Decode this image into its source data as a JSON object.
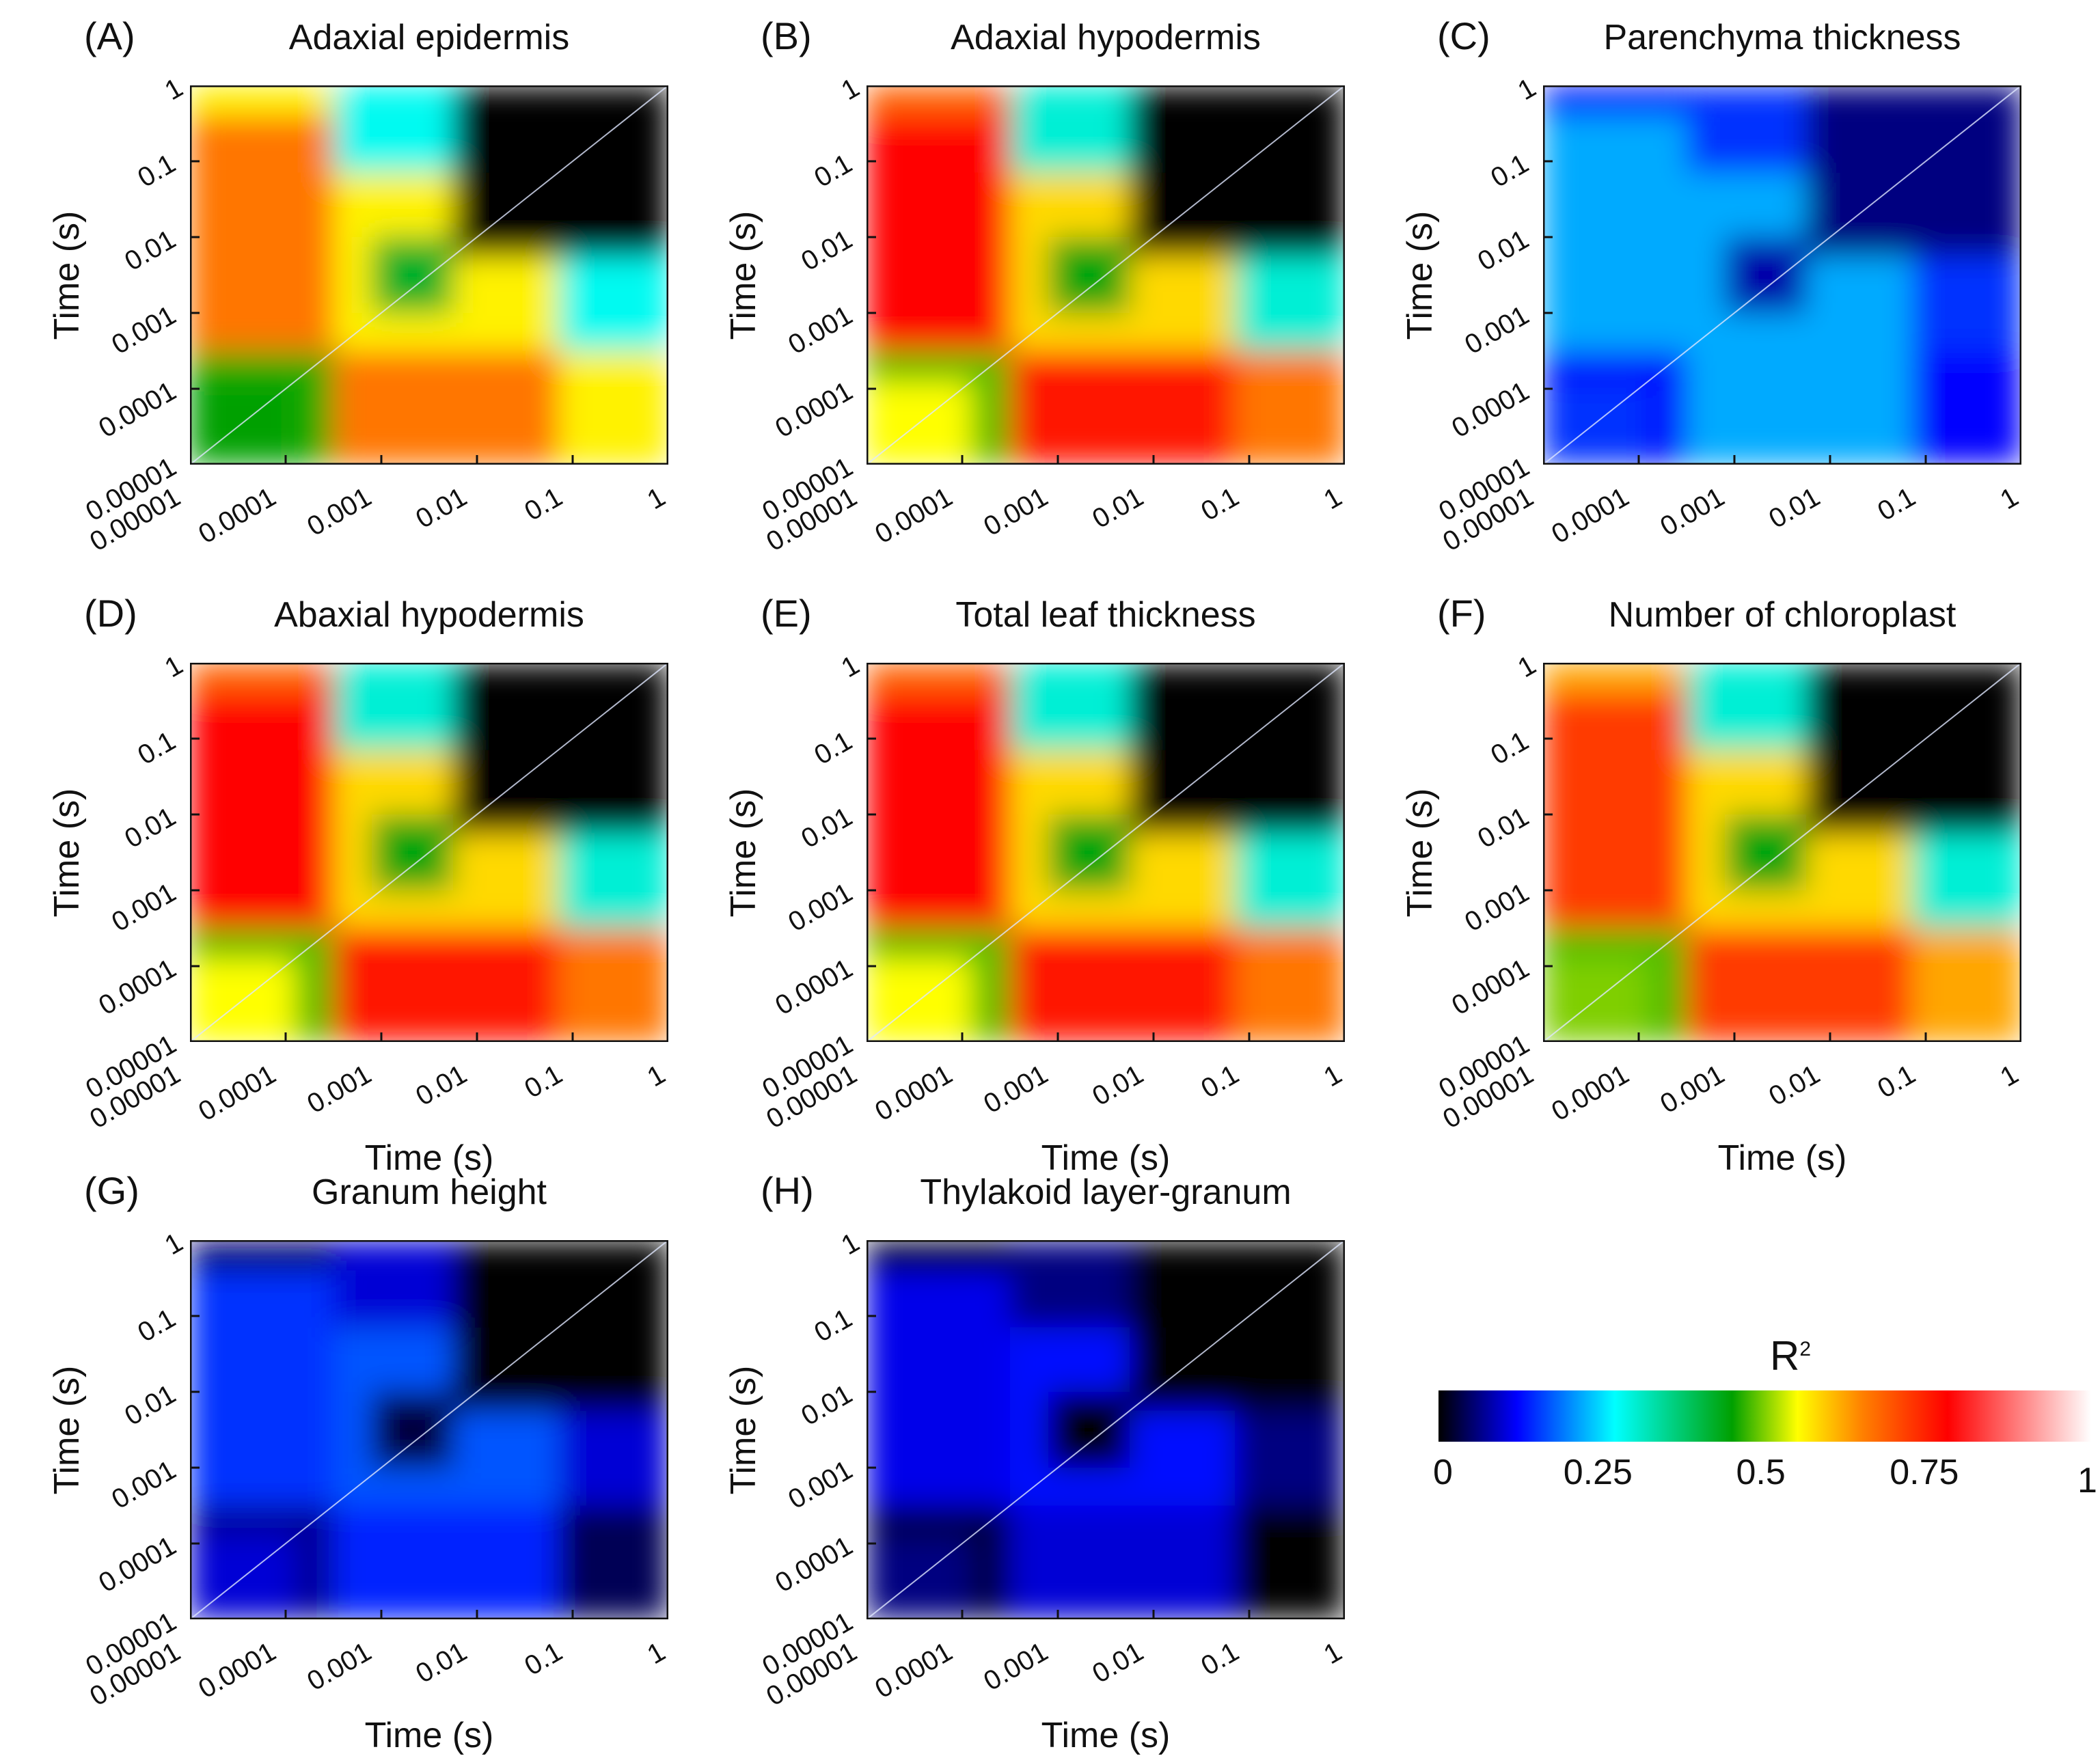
{
  "chart_data": {
    "type": "heatmap",
    "description_axes": "time-time correlation maps, log-scaled axes",
    "panels": [
      {
        "label": "(A)",
        "title": "Adaxial epidermis",
        "show_xlabel": false,
        "show_ylabel": true,
        "level": "medium"
      },
      {
        "label": "(B)",
        "title": "Adaxial hypodermis",
        "show_xlabel": false,
        "show_ylabel": true,
        "level": "high"
      },
      {
        "label": "(C)",
        "title": "Parenchyma thickness",
        "show_xlabel": false,
        "show_ylabel": true,
        "level": "low"
      },
      {
        "label": "(D)",
        "title": "Abaxial hypodermis",
        "show_xlabel": true,
        "show_ylabel": true,
        "level": "high"
      },
      {
        "label": "(E)",
        "title": "Total leaf thickness",
        "show_xlabel": true,
        "show_ylabel": true,
        "level": "high"
      },
      {
        "label": "(F)",
        "title": "Number of chloroplast",
        "show_xlabel": true,
        "show_ylabel": true,
        "level": "medium-high"
      },
      {
        "label": "(G)",
        "title": "Granum height",
        "show_xlabel": true,
        "show_ylabel": true,
        "level": "very-low"
      },
      {
        "label": "(H)",
        "title": "Thylakoid layer-granum",
        "show_xlabel": true,
        "show_ylabel": true,
        "level": "lowest"
      }
    ],
    "xlabel": "Time (s)",
    "ylabel": "Time (s)",
    "x_ticks": [
      "0.00001",
      "0.0001",
      "0.001",
      "0.01",
      "0.1",
      "1"
    ],
    "y_ticks": [
      "1",
      "0.1",
      "0.01",
      "0.001",
      "0.0001",
      "0.00001"
    ],
    "xlim": [
      1e-05,
      1
    ],
    "ylim": [
      1e-05,
      1
    ],
    "colorbar": {
      "title": "R",
      "title_sup": "2",
      "range": [
        0,
        1
      ],
      "ticks": [
        "0",
        "0.25",
        "0.5",
        "0.75",
        "1"
      ],
      "tick_values": [
        0,
        0.25,
        0.5,
        0.75,
        1
      ],
      "colors": [
        "#000000",
        "#0000ff",
        "#00ffff",
        "#00a000",
        "#ffff00",
        "#ff8000",
        "#ff0000",
        "#ffffff"
      ]
    }
  }
}
